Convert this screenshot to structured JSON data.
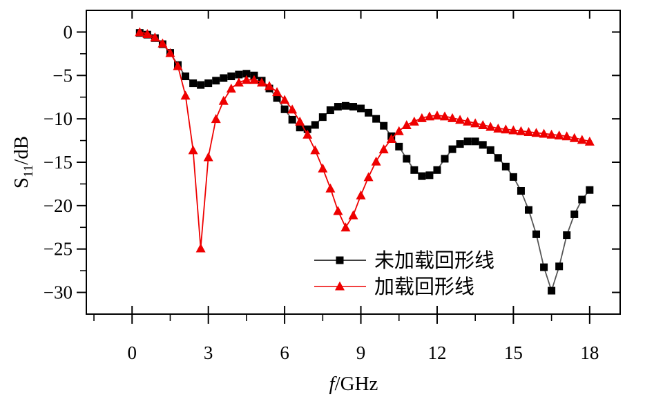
{
  "chart_data": {
    "type": "line",
    "xlabel": {
      "italic": "f",
      "rest": "/GHz"
    },
    "ylabel": {
      "main": "S",
      "sub": "11",
      "rest": "/dB"
    },
    "xlim": [
      -1.8,
      19.2
    ],
    "ylim": [
      -32.5,
      2.5
    ],
    "xticks": [
      0,
      3,
      6,
      9,
      12,
      15,
      18
    ],
    "yticks": [
      0,
      -5,
      -10,
      -15,
      -20,
      -25,
      -30
    ],
    "ytick_labels": [
      "0",
      "−5",
      "−10",
      "−15",
      "−20",
      "−25",
      "−30"
    ],
    "grid": false,
    "legend": {
      "placement": "bottom-right"
    },
    "series": [
      {
        "name": "未加载回形线",
        "color": "#000000",
        "marker": "square",
        "x": [
          0.3,
          0.6,
          0.9,
          1.2,
          1.5,
          1.8,
          2.1,
          2.4,
          2.7,
          3.0,
          3.3,
          3.6,
          3.9,
          4.2,
          4.5,
          4.8,
          5.1,
          5.4,
          5.7,
          6.0,
          6.3,
          6.6,
          6.9,
          7.2,
          7.5,
          7.8,
          8.1,
          8.4,
          8.7,
          9.0,
          9.3,
          9.6,
          9.9,
          10.2,
          10.5,
          10.8,
          11.1,
          11.4,
          11.7,
          12.0,
          12.3,
          12.6,
          12.9,
          13.2,
          13.5,
          13.8,
          14.1,
          14.4,
          14.7,
          15.0,
          15.3,
          15.6,
          15.9,
          16.2,
          16.5,
          16.8,
          17.1,
          17.4,
          17.7,
          18.0
        ],
        "y": [
          -0.1,
          -0.3,
          -0.7,
          -1.4,
          -2.4,
          -3.8,
          -5.1,
          -5.9,
          -6.1,
          -5.9,
          -5.6,
          -5.3,
          -5.1,
          -4.9,
          -4.8,
          -5.0,
          -5.6,
          -6.5,
          -7.6,
          -8.9,
          -10.1,
          -11.0,
          -11.2,
          -10.7,
          -9.8,
          -9.0,
          -8.6,
          -8.5,
          -8.6,
          -8.8,
          -9.3,
          -10.0,
          -10.8,
          -12.0,
          -13.2,
          -14.6,
          -15.9,
          -16.6,
          -16.5,
          -15.9,
          -14.6,
          -13.5,
          -12.9,
          -12.6,
          -12.6,
          -13.0,
          -13.6,
          -14.5,
          -15.5,
          -16.7,
          -18.3,
          -20.5,
          -23.3,
          -27.1,
          -29.8,
          -27.0,
          -23.4,
          -21.0,
          -19.3,
          -18.2
        ]
      },
      {
        "name": "加载回形线",
        "color": "#ee0000",
        "marker": "triangle",
        "x": [
          0.3,
          0.6,
          0.9,
          1.2,
          1.5,
          1.8,
          2.1,
          2.4,
          2.7,
          3.0,
          3.3,
          3.6,
          3.9,
          4.2,
          4.5,
          4.8,
          5.1,
          5.4,
          5.7,
          6.0,
          6.3,
          6.6,
          6.9,
          7.2,
          7.5,
          7.8,
          8.1,
          8.4,
          8.7,
          9.0,
          9.3,
          9.6,
          9.9,
          10.2,
          10.5,
          10.8,
          11.1,
          11.4,
          11.7,
          12.0,
          12.3,
          12.6,
          12.9,
          13.2,
          13.5,
          13.8,
          14.1,
          14.4,
          14.7,
          15.0,
          15.3,
          15.6,
          15.9,
          16.2,
          16.5,
          16.8,
          17.1,
          17.4,
          17.7,
          18.0
        ],
        "y": [
          0.0,
          -0.2,
          -0.6,
          -1.3,
          -2.4,
          -3.9,
          -7.3,
          -13.6,
          -24.9,
          -14.4,
          -10.0,
          -7.9,
          -6.5,
          -5.8,
          -5.5,
          -5.5,
          -5.8,
          -6.2,
          -6.9,
          -7.8,
          -8.9,
          -10.3,
          -11.8,
          -13.6,
          -15.7,
          -18.0,
          -20.6,
          -22.5,
          -21.1,
          -18.8,
          -16.7,
          -14.9,
          -13.5,
          -12.3,
          -11.4,
          -10.7,
          -10.3,
          -9.9,
          -9.7,
          -9.6,
          -9.7,
          -9.9,
          -10.1,
          -10.3,
          -10.5,
          -10.7,
          -10.9,
          -11.1,
          -11.2,
          -11.3,
          -11.4,
          -11.5,
          -11.6,
          -11.7,
          -11.8,
          -11.9,
          -12.0,
          -12.2,
          -12.4,
          -12.6
        ]
      }
    ]
  }
}
